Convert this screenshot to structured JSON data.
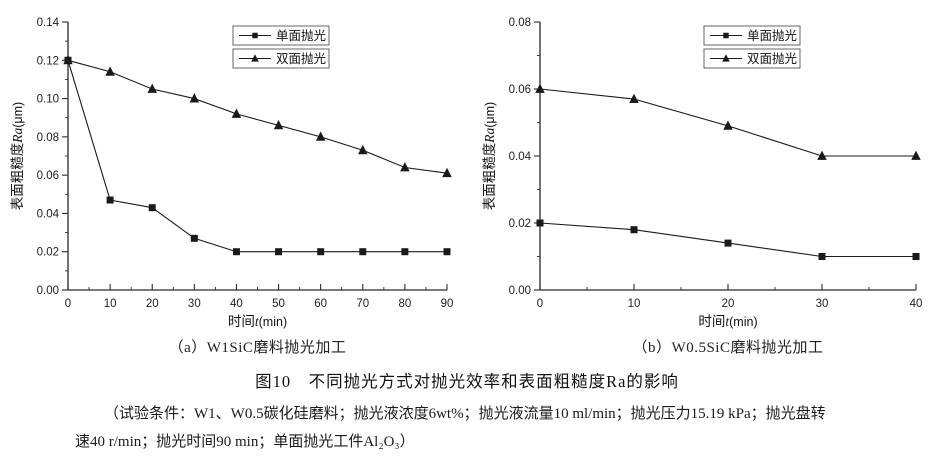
{
  "figure": {
    "caption": "图10　不同抛光方式对抛光效率和表面粗糙度Ra的影响",
    "conditions": [
      "（试验条件：W1、W0.5碳化硅磨料；抛光液浓度6wt%；抛光液流量10 ml/min；抛光压力15.19 kPa；抛光盘转",
      "速40 r/min；抛光时间90 min；单面抛光工件Al₂O₃）"
    ]
  },
  "chart_data": [
    {
      "id": "a",
      "type": "line",
      "subcaption": "（a）W1SiC磨料抛光加工",
      "xlabel": {
        "prefix": "时间",
        "var": "t",
        "unit": "(min)"
      },
      "ylabel": {
        "prefix": "表面粗糙度",
        "var": "Ra",
        "unit": "(μm)"
      },
      "xlim": [
        0,
        90
      ],
      "ylim": [
        0,
        0.14
      ],
      "xticks": [
        0,
        10,
        20,
        30,
        40,
        50,
        60,
        70,
        80,
        90
      ],
      "xtick_labels": [
        "0",
        "10",
        "20",
        "30",
        "40",
        "50",
        "60",
        "70",
        "80",
        "90"
      ],
      "x_minor_step": 5,
      "yticks": [
        0,
        0.02,
        0.04,
        0.06,
        0.08,
        0.1,
        0.12,
        0.14
      ],
      "ytick_labels": [
        "0.00",
        "0.02",
        "0.04",
        "0.06",
        "0.08",
        "0.10",
        "0.12",
        "0.14"
      ],
      "y_minor_step": 0.01,
      "grid": false,
      "legend_position": "top-right",
      "series": [
        {
          "name": "单面抛光",
          "marker": "square",
          "x": [
            0,
            10,
            20,
            30,
            40,
            50,
            60,
            70,
            80,
            90
          ],
          "y": [
            0.12,
            0.047,
            0.043,
            0.027,
            0.02,
            0.02,
            0.02,
            0.02,
            0.02,
            0.02
          ]
        },
        {
          "name": "双面抛光",
          "marker": "triangle",
          "x": [
            0,
            10,
            20,
            30,
            40,
            50,
            60,
            70,
            80,
            90
          ],
          "y": [
            0.12,
            0.114,
            0.105,
            0.1,
            0.092,
            0.086,
            0.08,
            0.073,
            0.064,
            0.061
          ]
        }
      ],
      "line_color": "#1a1a1a"
    },
    {
      "id": "b",
      "type": "line",
      "subcaption": "（b）W0.5SiC磨料抛光加工",
      "xlabel": {
        "prefix": "时间",
        "var": "t",
        "unit": "(min)"
      },
      "ylabel": {
        "prefix": "表面粗糙度",
        "var": "Ra",
        "unit": "(μm)"
      },
      "xlim": [
        0,
        40
      ],
      "ylim": [
        0,
        0.08
      ],
      "xticks": [
        0,
        10,
        20,
        30,
        40
      ],
      "xtick_labels": [
        "0",
        "10",
        "20",
        "30",
        "40"
      ],
      "x_minor_step": 5,
      "yticks": [
        0,
        0.02,
        0.04,
        0.06,
        0.08
      ],
      "ytick_labels": [
        "0.00",
        "0.02",
        "0.04",
        "0.06",
        "0.08"
      ],
      "y_minor_step": 0.01,
      "grid": false,
      "legend_position": "top-right",
      "series": [
        {
          "name": "单面抛光",
          "marker": "square",
          "x": [
            0,
            10,
            20,
            30,
            40
          ],
          "y": [
            0.02,
            0.018,
            0.014,
            0.01,
            0.01
          ]
        },
        {
          "name": "双面抛光",
          "marker": "triangle",
          "x": [
            0,
            10,
            20,
            30,
            40
          ],
          "y": [
            0.06,
            0.057,
            0.049,
            0.04,
            0.04
          ]
        }
      ],
      "line_color": "#1a1a1a"
    }
  ]
}
